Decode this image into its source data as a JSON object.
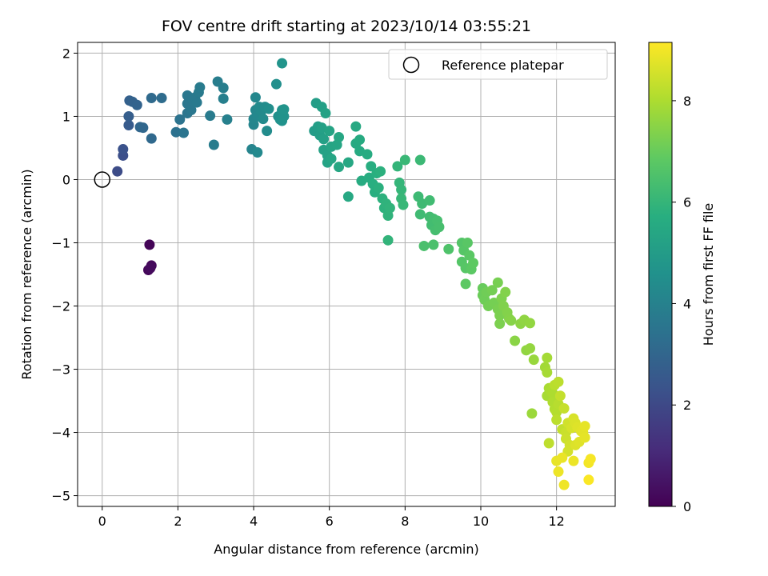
{
  "chart_data": {
    "type": "scatter",
    "title": "FOV centre drift starting at 2023/10/14 03:55:21",
    "xlabel": "Angular distance from reference (arcmin)",
    "ylabel": "Rotation from reference (arcmin)",
    "xlim": [
      -0.65,
      13.55
    ],
    "ylim": [
      -5.17,
      2.17
    ],
    "xticks": [
      0,
      2,
      4,
      6,
      8,
      10,
      12
    ],
    "yticks": [
      -5,
      -4,
      -3,
      -2,
      -1,
      0,
      1,
      2
    ],
    "grid": true,
    "legend": {
      "position": "top-right",
      "entries": [
        "Reference platepar"
      ]
    },
    "colorbar": {
      "label": "Hours from first FF file",
      "range": [
        0,
        9.15
      ],
      "ticks": [
        0,
        2,
        4,
        6,
        8
      ],
      "colormap": "viridis"
    },
    "reference": {
      "x": 0,
      "y": 0
    },
    "points": [
      [
        1.25,
        -1.03,
        0.1
      ],
      [
        1.22,
        -1.43,
        0.15
      ],
      [
        1.3,
        -1.36,
        0.2
      ],
      [
        1.27,
        -1.4,
        0.25
      ],
      [
        0.4,
        0.13,
        2.1
      ],
      [
        0.55,
        0.38,
        2.2
      ],
      [
        0.55,
        0.48,
        2.3
      ],
      [
        0.7,
        0.86,
        2.6
      ],
      [
        0.7,
        1.0,
        2.7
      ],
      [
        0.72,
        1.25,
        2.8
      ],
      [
        0.8,
        1.23,
        2.85
      ],
      [
        0.92,
        1.18,
        2.9
      ],
      [
        1.0,
        0.83,
        3.0
      ],
      [
        1.08,
        0.82,
        3.05
      ],
      [
        1.3,
        0.65,
        3.1
      ],
      [
        1.3,
        1.29,
        3.15
      ],
      [
        1.57,
        1.29,
        3.2
      ],
      [
        1.95,
        0.75,
        3.4
      ],
      [
        2.05,
        0.95,
        3.45
      ],
      [
        2.15,
        0.74,
        3.5
      ],
      [
        2.25,
        1.05,
        3.55
      ],
      [
        2.25,
        1.2,
        3.58
      ],
      [
        2.25,
        1.33,
        3.6
      ],
      [
        2.35,
        1.1,
        3.62
      ],
      [
        2.4,
        1.25,
        3.65
      ],
      [
        2.45,
        1.3,
        3.68
      ],
      [
        2.5,
        1.22,
        3.7
      ],
      [
        2.55,
        1.38,
        3.72
      ],
      [
        2.58,
        1.46,
        3.75
      ],
      [
        2.85,
        1.01,
        3.78
      ],
      [
        2.95,
        0.55,
        3.8
      ],
      [
        3.05,
        1.55,
        3.85
      ],
      [
        3.2,
        1.45,
        3.88
      ],
      [
        3.2,
        1.28,
        3.9
      ],
      [
        3.3,
        0.95,
        3.95
      ],
      [
        3.95,
        0.48,
        4.1
      ],
      [
        4.0,
        0.87,
        4.15
      ],
      [
        4.0,
        0.96,
        4.18
      ],
      [
        4.05,
        1.1,
        4.2
      ],
      [
        4.05,
        1.3,
        4.22
      ],
      [
        4.1,
        1.0,
        4.25
      ],
      [
        4.1,
        0.43,
        4.28
      ],
      [
        4.15,
        1.15,
        4.3
      ],
      [
        4.2,
        1.08,
        4.32
      ],
      [
        4.25,
        0.96,
        4.35
      ],
      [
        4.3,
        1.15,
        4.38
      ],
      [
        4.35,
        0.77,
        4.4
      ],
      [
        4.4,
        1.12,
        4.45
      ],
      [
        4.6,
        1.51,
        4.5
      ],
      [
        4.65,
        1.0,
        4.55
      ],
      [
        4.7,
        0.95,
        4.58
      ],
      [
        4.75,
        1.1,
        4.6
      ],
      [
        4.75,
        0.93,
        4.62
      ],
      [
        4.8,
        1.0,
        4.65
      ],
      [
        4.8,
        1.11,
        4.68
      ],
      [
        4.75,
        1.84,
        4.7
      ],
      [
        5.6,
        0.77,
        5.0
      ],
      [
        5.65,
        1.21,
        5.05
      ],
      [
        5.7,
        0.84,
        5.08
      ],
      [
        5.75,
        0.7,
        5.1
      ],
      [
        5.8,
        1.15,
        5.12
      ],
      [
        5.8,
        0.82,
        5.15
      ],
      [
        5.85,
        0.64,
        5.18
      ],
      [
        5.9,
        1.05,
        5.2
      ],
      [
        5.85,
        0.47,
        5.22
      ],
      [
        5.95,
        0.38,
        5.25
      ],
      [
        5.95,
        0.27,
        5.28
      ],
      [
        6.0,
        0.77,
        5.3
      ],
      [
        6.05,
        0.52,
        5.32
      ],
      [
        6.05,
        0.33,
        5.35
      ],
      [
        6.2,
        0.55,
        5.38
      ],
      [
        6.25,
        0.67,
        5.4
      ],
      [
        6.25,
        0.2,
        5.42
      ],
      [
        6.5,
        0.27,
        5.45
      ],
      [
        6.5,
        -0.27,
        5.48
      ],
      [
        6.7,
        0.84,
        5.5
      ],
      [
        6.7,
        0.57,
        5.52
      ],
      [
        6.8,
        0.45,
        5.55
      ],
      [
        6.8,
        0.63,
        5.58
      ],
      [
        6.85,
        -0.02,
        5.6
      ],
      [
        7.0,
        0.4,
        5.62
      ],
      [
        7.05,
        0.03,
        5.65
      ],
      [
        7.1,
        0.21,
        5.68
      ],
      [
        7.15,
        -0.07,
        5.7
      ],
      [
        7.2,
        -0.2,
        5.72
      ],
      [
        7.25,
        0.1,
        5.75
      ],
      [
        7.3,
        -0.13,
        5.78
      ],
      [
        7.35,
        0.13,
        5.8
      ],
      [
        7.4,
        -0.3,
        5.82
      ],
      [
        7.45,
        -0.45,
        5.85
      ],
      [
        7.5,
        -0.38,
        5.88
      ],
      [
        7.55,
        -0.57,
        5.9
      ],
      [
        7.6,
        -0.45,
        5.92
      ],
      [
        7.55,
        -0.96,
        5.95
      ],
      [
        7.8,
        0.21,
        5.98
      ],
      [
        7.85,
        -0.05,
        6.0
      ],
      [
        7.9,
        -0.16,
        6.02
      ],
      [
        7.9,
        -0.3,
        6.05
      ],
      [
        7.95,
        -0.4,
        6.08
      ],
      [
        8.0,
        0.31,
        6.1
      ],
      [
        8.4,
        0.31,
        6.15
      ],
      [
        8.35,
        -0.27,
        6.18
      ],
      [
        8.45,
        -0.38,
        6.2
      ],
      [
        8.4,
        -0.55,
        6.22
      ],
      [
        8.65,
        -0.33,
        6.25
      ],
      [
        8.65,
        -0.59,
        6.28
      ],
      [
        8.7,
        -0.72,
        6.3
      ],
      [
        8.75,
        -0.62,
        6.32
      ],
      [
        8.8,
        -0.8,
        6.35
      ],
      [
        8.85,
        -0.65,
        6.38
      ],
      [
        8.9,
        -0.75,
        6.4
      ],
      [
        8.5,
        -1.05,
        6.45
      ],
      [
        8.75,
        -1.03,
        6.48
      ],
      [
        9.15,
        -1.1,
        6.55
      ],
      [
        9.5,
        -1.0,
        6.65
      ],
      [
        9.5,
        -1.3,
        6.68
      ],
      [
        9.55,
        -1.12,
        6.7
      ],
      [
        9.6,
        -1.4,
        6.72
      ],
      [
        9.65,
        -1.0,
        6.75
      ],
      [
        9.7,
        -1.2,
        6.78
      ],
      [
        9.75,
        -1.42,
        6.8
      ],
      [
        9.6,
        -1.65,
        6.82
      ],
      [
        9.8,
        -1.32,
        6.85
      ],
      [
        10.05,
        -1.72,
        7.0
      ],
      [
        10.05,
        -1.83,
        7.05
      ],
      [
        10.1,
        -1.9,
        7.1
      ],
      [
        10.15,
        -1.78,
        7.12
      ],
      [
        10.2,
        -2.0,
        7.15
      ],
      [
        10.3,
        -1.75,
        7.18
      ],
      [
        10.35,
        -1.95,
        7.2
      ],
      [
        10.45,
        -1.63,
        7.22
      ],
      [
        10.45,
        -2.05,
        7.25
      ],
      [
        10.5,
        -2.15,
        7.28
      ],
      [
        10.5,
        -2.28,
        7.3
      ],
      [
        10.55,
        -1.88,
        7.32
      ],
      [
        10.6,
        -2.0,
        7.35
      ],
      [
        10.65,
        -1.78,
        7.38
      ],
      [
        10.7,
        -2.1,
        7.4
      ],
      [
        10.75,
        -2.2,
        7.42
      ],
      [
        10.8,
        -2.23,
        7.45
      ],
      [
        10.9,
        -2.55,
        7.5
      ],
      [
        11.05,
        -2.28,
        7.55
      ],
      [
        11.15,
        -2.22,
        7.58
      ],
      [
        11.2,
        -2.7,
        7.6
      ],
      [
        11.3,
        -2.27,
        7.62
      ],
      [
        11.3,
        -2.67,
        7.65
      ],
      [
        11.4,
        -2.85,
        7.7
      ],
      [
        11.35,
        -3.7,
        7.75
      ],
      [
        11.7,
        -2.97,
        7.85
      ],
      [
        11.75,
        -2.82,
        7.88
      ],
      [
        11.75,
        -3.05,
        7.9
      ],
      [
        11.75,
        -3.42,
        7.92
      ],
      [
        11.8,
        -3.3,
        7.95
      ],
      [
        11.85,
        -3.35,
        7.98
      ],
      [
        11.9,
        -3.38,
        8.0
      ],
      [
        11.9,
        -3.52,
        8.05
      ],
      [
        11.95,
        -3.63,
        8.08
      ],
      [
        12.0,
        -3.68,
        8.1
      ],
      [
        12.05,
        -3.55,
        8.15
      ],
      [
        11.95,
        -3.25,
        8.18
      ],
      [
        12.0,
        -3.8,
        8.2
      ],
      [
        12.05,
        -3.2,
        8.22
      ],
      [
        11.8,
        -4.17,
        8.25
      ],
      [
        12.15,
        -3.95,
        8.3
      ],
      [
        12.1,
        -3.42,
        8.32
      ],
      [
        12.2,
        -3.62,
        8.35
      ],
      [
        12.25,
        -4.0,
        8.4
      ],
      [
        12.25,
        -4.1,
        8.45
      ],
      [
        12.3,
        -3.85,
        8.5
      ],
      [
        12.35,
        -4.2,
        8.52
      ],
      [
        12.3,
        -4.3,
        8.55
      ],
      [
        12.4,
        -3.93,
        8.58
      ],
      [
        12.45,
        -3.78,
        8.6
      ],
      [
        12.5,
        -3.85,
        8.65
      ],
      [
        12.5,
        -4.2,
        8.68
      ],
      [
        12.55,
        -3.92,
        8.7
      ],
      [
        12.6,
        -4.15,
        8.72
      ],
      [
        12.65,
        -3.98,
        8.75
      ],
      [
        12.7,
        -4.0,
        8.78
      ],
      [
        12.75,
        -4.08,
        8.8
      ],
      [
        12.75,
        -3.9,
        8.82
      ],
      [
        12.0,
        -4.45,
        8.85
      ],
      [
        12.15,
        -4.4,
        8.88
      ],
      [
        12.45,
        -4.45,
        8.9
      ],
      [
        12.05,
        -4.62,
        8.92
      ],
      [
        12.2,
        -4.83,
        8.95
      ],
      [
        12.85,
        -4.48,
        9.0
      ],
      [
        12.9,
        -4.42,
        9.05
      ],
      [
        12.85,
        -4.75,
        9.1
      ]
    ]
  }
}
